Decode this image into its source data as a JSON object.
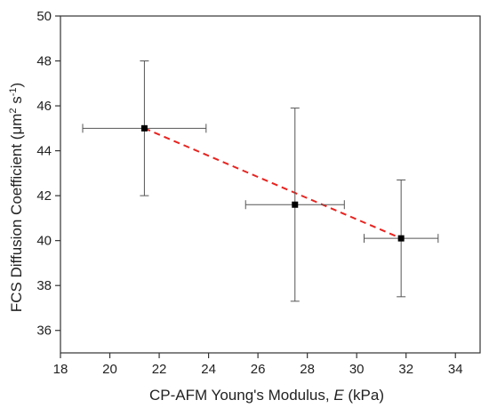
{
  "chart_data": {
    "type": "scatter",
    "xlabel": {
      "main": "CP-AFM Young's Modulus, ",
      "italic": "E",
      "tail": " (kPa)"
    },
    "ylabel": {
      "main": "FCS Diffusion Coefficient (μm",
      "sup1": "2",
      "mid": " s",
      "sup2": "-1",
      "tail": ")"
    },
    "xlim": [
      18,
      35
    ],
    "ylim": [
      35,
      50
    ],
    "xticks": [
      18,
      20,
      22,
      24,
      26,
      28,
      30,
      32,
      34
    ],
    "yticks": [
      36,
      38,
      40,
      42,
      44,
      46,
      48,
      50
    ],
    "grid": false,
    "series": [
      {
        "points": [
          {
            "x": 21.4,
            "y": 45.0,
            "xerr": 2.5,
            "yerr": 3.0
          },
          {
            "x": 27.5,
            "y": 41.6,
            "xerr": 2.0,
            "yerr_low": 4.3,
            "yerr_high": 4.3
          },
          {
            "x": 31.8,
            "y": 40.1,
            "xerr": 1.5,
            "yerr_low": 2.6,
            "yerr_high": 2.6
          }
        ],
        "marker_color": "#000000",
        "errorbar_color": "#555555"
      }
    ],
    "trendline": {
      "x": [
        21.4,
        31.8
      ],
      "y": [
        45.0,
        40.1
      ],
      "color": "#e8231f",
      "style": "dashed"
    }
  }
}
